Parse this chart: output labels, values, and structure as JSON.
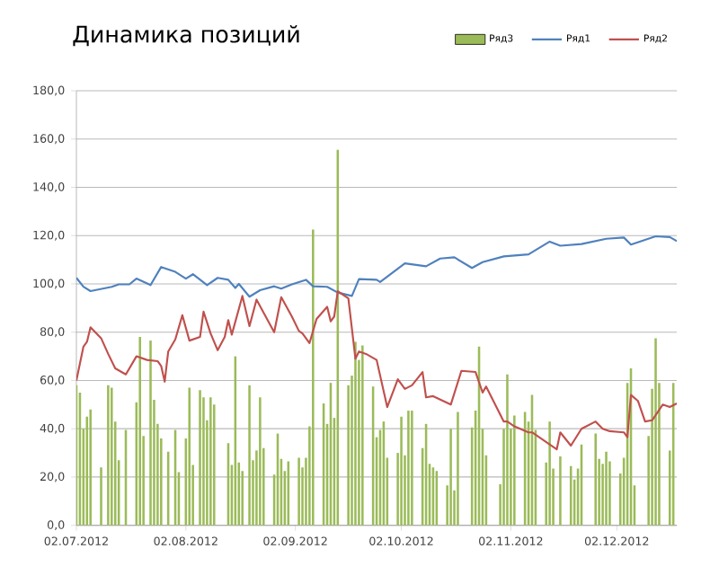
{
  "chart_data": {
    "type": "bar",
    "title": "Динамика позиций",
    "xlim": [
      "2012-07-02",
      "2012-12-19"
    ],
    "xticks": [
      {
        "value": "2012-07-02",
        "label": "02.07.2012"
      },
      {
        "value": "2012-08-02",
        "label": "02.08.2012"
      },
      {
        "value": "2012-09-02",
        "label": "02.09.2012"
      },
      {
        "value": "2012-10-02",
        "label": "02.10.2012"
      },
      {
        "value": "2012-11-02",
        "label": "02.11.2012"
      },
      {
        "value": "2012-12-02",
        "label": "02.12.2012"
      }
    ],
    "ylim": [
      0,
      180
    ],
    "yticks": [
      {
        "value": 0,
        "label": "0,0"
      },
      {
        "value": 20,
        "label": "20,0"
      },
      {
        "value": 40,
        "label": "40,0"
      },
      {
        "value": 60,
        "label": "60,0"
      },
      {
        "value": 80,
        "label": "80,0"
      },
      {
        "value": 100,
        "label": "100,0"
      },
      {
        "value": 120,
        "label": "120,0"
      },
      {
        "value": 140,
        "label": "140,0"
      },
      {
        "value": 160,
        "label": "160,0"
      },
      {
        "value": 180,
        "label": "180,0"
      }
    ],
    "grid": "y",
    "legend": "top right",
    "series": [
      {
        "name": "Ряд3",
        "color": "#9bbb59",
        "x": [
          "2012-07-02",
          "2012-07-03",
          "2012-07-04",
          "2012-07-05",
          "2012-07-06",
          "2012-07-09",
          "2012-07-11",
          "2012-07-12",
          "2012-07-13",
          "2012-07-14",
          "2012-07-16",
          "2012-07-19",
          "2012-07-20",
          "2012-07-21",
          "2012-07-23",
          "2012-07-24",
          "2012-07-25",
          "2012-07-26",
          "2012-07-28",
          "2012-07-30",
          "2012-07-31",
          "2012-08-02",
          "2012-08-03",
          "2012-08-04",
          "2012-08-06",
          "2012-08-07",
          "2012-08-08",
          "2012-08-09",
          "2012-08-10",
          "2012-08-14",
          "2012-08-15",
          "2012-08-16",
          "2012-08-17",
          "2012-08-18",
          "2012-08-20",
          "2012-08-21",
          "2012-08-22",
          "2012-08-23",
          "2012-08-24",
          "2012-08-27",
          "2012-08-28",
          "2012-08-29",
          "2012-08-30",
          "2012-08-31",
          "2012-09-03",
          "2012-09-04",
          "2012-09-05",
          "2012-09-06",
          "2012-09-07",
          "2012-09-10",
          "2012-09-11",
          "2012-09-12",
          "2012-09-13",
          "2012-09-14",
          "2012-09-17",
          "2012-09-18",
          "2012-09-19",
          "2012-09-20",
          "2012-09-21",
          "2012-09-24",
          "2012-09-25",
          "2012-09-26",
          "2012-09-27",
          "2012-09-28",
          "2012-10-01",
          "2012-10-02",
          "2012-10-03",
          "2012-10-04",
          "2012-10-05",
          "2012-10-08",
          "2012-10-09",
          "2012-10-10",
          "2012-10-11",
          "2012-10-12",
          "2012-10-15",
          "2012-10-16",
          "2012-10-17",
          "2012-10-18",
          "2012-10-22",
          "2012-10-23",
          "2012-10-24",
          "2012-10-25",
          "2012-10-26",
          "2012-10-30",
          "2012-10-31",
          "2012-11-01",
          "2012-11-02",
          "2012-11-03",
          "2012-11-06",
          "2012-11-07",
          "2012-11-08",
          "2012-11-09",
          "2012-11-12",
          "2012-11-13",
          "2012-11-14",
          "2012-11-16",
          "2012-11-19",
          "2012-11-20",
          "2012-11-21",
          "2012-11-22",
          "2012-11-26",
          "2012-11-27",
          "2012-11-28",
          "2012-11-29",
          "2012-11-30",
          "2012-12-03",
          "2012-12-04",
          "2012-12-05",
          "2012-12-06",
          "2012-12-07",
          "2012-12-11",
          "2012-12-12",
          "2012-12-13",
          "2012-12-14",
          "2012-12-17",
          "2012-12-18"
        ],
        "values": [
          58,
          55,
          40,
          45,
          48,
          24,
          58,
          57,
          43,
          27,
          39.5,
          51,
          78,
          37,
          76.5,
          52,
          42,
          36,
          30.5,
          39.5,
          22,
          36,
          57,
          25,
          56,
          53,
          43.5,
          53,
          50,
          34,
          25,
          70,
          26,
          22.5,
          58,
          27,
          31,
          53,
          32,
          21,
          38,
          27.5,
          22.5,
          26.5,
          28,
          24,
          28,
          41,
          122.5,
          50.5,
          42,
          59,
          44.5,
          155.5,
          58,
          62,
          76,
          68.5,
          74.5,
          57.5,
          36.5,
          39.5,
          43,
          28,
          30,
          45,
          29,
          47.5,
          47.5,
          32,
          42,
          25.5,
          24,
          22.5,
          16.5,
          40,
          14.5,
          47,
          40.5,
          47.5,
          74,
          40,
          29,
          17,
          40,
          62.5,
          40,
          45.5,
          47,
          43,
          54,
          39.5,
          26,
          43,
          23.5,
          28.5,
          24.5,
          19,
          23.5,
          33.5,
          38,
          27.5,
          25.5,
          30.5,
          26.5,
          21.5,
          28,
          59,
          65,
          16.5,
          37,
          56.5,
          77.5,
          59,
          31,
          59
        ]
      },
      {
        "name": "Ряд1",
        "type": "line",
        "color": "#4f81bd",
        "x": [
          "2012-07-02",
          "2012-07-04",
          "2012-07-06",
          "2012-07-12",
          "2012-07-14",
          "2012-07-17",
          "2012-07-19",
          "2012-07-23",
          "2012-07-26",
          "2012-07-30",
          "2012-08-02",
          "2012-08-04",
          "2012-08-08",
          "2012-08-11",
          "2012-08-14",
          "2012-08-16",
          "2012-08-17",
          "2012-08-20",
          "2012-08-23",
          "2012-08-27",
          "2012-08-29",
          "2012-09-01",
          "2012-09-05",
          "2012-09-07",
          "2012-09-11",
          "2012-09-14",
          "2012-09-18",
          "2012-09-20",
          "2012-09-25",
          "2012-09-26",
          "2012-10-03",
          "2012-10-09",
          "2012-10-13",
          "2012-10-17",
          "2012-10-22",
          "2012-10-25",
          "2012-10-31",
          "2012-11-07",
          "2012-11-13",
          "2012-11-16",
          "2012-11-22",
          "2012-11-29",
          "2012-12-04",
          "2012-12-06",
          "2012-12-13",
          "2012-12-17",
          "2012-12-19"
        ],
        "values": [
          102.5,
          98.8,
          97,
          98.8,
          99.8,
          99.8,
          102.2,
          99.5,
          107,
          105,
          102.2,
          104,
          99.5,
          102.5,
          101.7,
          98.3,
          100,
          94.7,
          97.4,
          99,
          98,
          99.8,
          101.7,
          99,
          98.8,
          96.4,
          95,
          102,
          101.7,
          100.8,
          108.5,
          107.3,
          110.5,
          111,
          106.6,
          109,
          111.4,
          112.2,
          117.5,
          115.8,
          116.5,
          118.7,
          119.2,
          116.3,
          119.7,
          119.4,
          117.7
        ]
      },
      {
        "name": "Ряд2",
        "type": "line",
        "color": "#c0504d",
        "x": [
          "2012-07-02",
          "2012-07-04",
          "2012-07-05",
          "2012-07-06",
          "2012-07-09",
          "2012-07-11",
          "2012-07-13",
          "2012-07-16",
          "2012-07-19",
          "2012-07-22",
          "2012-07-25",
          "2012-07-26",
          "2012-07-27",
          "2012-07-28",
          "2012-07-30",
          "2012-08-01",
          "2012-08-03",
          "2012-08-06",
          "2012-08-07",
          "2012-08-09",
          "2012-08-11",
          "2012-08-13",
          "2012-08-14",
          "2012-08-15",
          "2012-08-18",
          "2012-08-20",
          "2012-08-22",
          "2012-08-27",
          "2012-08-29",
          "2012-09-01",
          "2012-09-03",
          "2012-09-04",
          "2012-09-06",
          "2012-09-08",
          "2012-09-11",
          "2012-09-12",
          "2012-09-13",
          "2012-09-14",
          "2012-09-17",
          "2012-09-19",
          "2012-09-20",
          "2012-09-22",
          "2012-09-25",
          "2012-09-28",
          "2012-10-01",
          "2012-10-03",
          "2012-10-05",
          "2012-10-08",
          "2012-10-09",
          "2012-10-11",
          "2012-10-16",
          "2012-10-19",
          "2012-10-23",
          "2012-10-25",
          "2012-10-26",
          "2012-10-31",
          "2012-11-01",
          "2012-11-03",
          "2012-11-07",
          "2012-11-08",
          "2012-11-15",
          "2012-11-16",
          "2012-11-19",
          "2012-11-22",
          "2012-11-26",
          "2012-11-28",
          "2012-11-30",
          "2012-12-04",
          "2012-12-05",
          "2012-12-06",
          "2012-12-08",
          "2012-12-10",
          "2012-12-12",
          "2012-12-15",
          "2012-12-17",
          "2012-12-19"
        ],
        "values": [
          60,
          74,
          76,
          82,
          77.5,
          71,
          65,
          62.5,
          70,
          68.5,
          68,
          66,
          59.5,
          72,
          77,
          87,
          76.5,
          78,
          88.5,
          79.5,
          72.5,
          78,
          85,
          79,
          95,
          82.5,
          93.5,
          80,
          94.5,
          86.5,
          80.5,
          79.5,
          75.5,
          85.5,
          90.5,
          84.5,
          86.5,
          97,
          94,
          69,
          72,
          71,
          68.5,
          49,
          60.5,
          56.5,
          58,
          63.5,
          53,
          53.5,
          50,
          64,
          63.5,
          55,
          57.5,
          43,
          43,
          41,
          38.5,
          38.5,
          31.5,
          38.5,
          33,
          40,
          43,
          40,
          39,
          38.5,
          36.5,
          54,
          51.5,
          43,
          43.5,
          50,
          49,
          50.5
        ]
      }
    ]
  }
}
